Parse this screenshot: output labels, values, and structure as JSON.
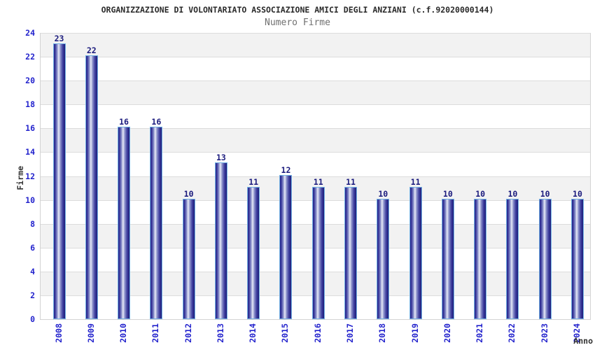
{
  "chart_data": {
    "type": "bar",
    "title": "ORGANIZZAZIONE DI VOLONTARIATO ASSOCIAZIONE AMICI DEGLI ANZIANI (c.f.92020000144)",
    "subtitle": "Numero Firme",
    "xlabel": "Anno",
    "ylabel": "Firme",
    "categories": [
      "2008",
      "2009",
      "2010",
      "2011",
      "2012",
      "2013",
      "2014",
      "2015",
      "2016",
      "2017",
      "2018",
      "2019",
      "2020",
      "2021",
      "2022",
      "2023",
      "2024"
    ],
    "values": [
      23,
      22,
      16,
      16,
      10,
      13,
      11,
      12,
      11,
      11,
      10,
      11,
      10,
      10,
      10,
      10,
      10
    ],
    "ylim": [
      0,
      24
    ],
    "ytick_step": 2,
    "grid": "horizontal alternating bands with lines at every tick",
    "legend": "none",
    "bar_value_labels": true,
    "x_tick_rotation": "vertical",
    "colors": {
      "title_color": "#2a2a2a",
      "subtitle_color": "#707070",
      "axis_tick_blue": "#2424cd",
      "value_label_navy": "#1a1a7d",
      "axis_title_color": "#333333",
      "band_gray": "#f2f2f2",
      "band_white": "#ffffff",
      "grid_line": "#dcdcdc",
      "plot_border": "#d3d3d3",
      "bar_border": "#74b2e4",
      "bar_gradient": [
        {
          "color": "#23238a",
          "pos": 0
        },
        {
          "color": "#3d3d9e",
          "pos": 12
        },
        {
          "color": "#9096cd",
          "pos": 30
        },
        {
          "color": "#e8ebf8",
          "pos": 43
        },
        {
          "color": "#9096cd",
          "pos": 57
        },
        {
          "color": "#3d3d9e",
          "pos": 80
        },
        {
          "color": "#1d1d78",
          "pos": 100
        }
      ]
    }
  }
}
